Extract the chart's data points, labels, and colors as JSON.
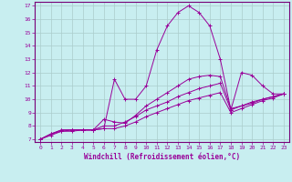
{
  "xlabel": "Windchill (Refroidissement éolien,°C)",
  "bg_color": "#c8eef0",
  "grid_color": "#aacccc",
  "line_color": "#990099",
  "spine_color": "#770077",
  "xlim": [
    -0.5,
    23.5
  ],
  "ylim": [
    6.8,
    17.3
  ],
  "xticks": [
    0,
    1,
    2,
    3,
    4,
    5,
    6,
    7,
    8,
    9,
    10,
    11,
    12,
    13,
    14,
    15,
    16,
    17,
    18,
    19,
    20,
    21,
    22,
    23
  ],
  "yticks": [
    7,
    8,
    9,
    10,
    11,
    12,
    13,
    14,
    15,
    16,
    17
  ],
  "tick_fontsize": 4.5,
  "xlabel_fontsize": 5.5,
  "lines": [
    {
      "x": [
        0,
        1,
        2,
        3,
        4,
        5,
        6,
        7,
        8,
        9,
        10,
        11,
        12,
        13,
        14,
        15,
        16,
        17,
        18,
        19,
        20,
        21,
        22,
        23
      ],
      "y": [
        7.0,
        7.4,
        7.7,
        7.7,
        7.7,
        7.7,
        7.8,
        11.5,
        10.0,
        10.0,
        11.0,
        13.7,
        15.5,
        16.5,
        17.0,
        16.5,
        15.5,
        13.0,
        9.2,
        12.0,
        11.8,
        11.0,
        10.4,
        10.4
      ]
    },
    {
      "x": [
        0,
        1,
        2,
        3,
        4,
        5,
        6,
        7,
        8,
        9,
        10,
        11,
        12,
        13,
        14,
        15,
        16,
        17,
        18,
        19,
        20,
        21,
        22,
        23
      ],
      "y": [
        7.0,
        7.4,
        7.7,
        7.7,
        7.7,
        7.7,
        8.5,
        8.3,
        8.2,
        8.8,
        9.5,
        10.0,
        10.5,
        11.0,
        11.5,
        11.7,
        11.8,
        11.7,
        9.3,
        9.5,
        9.8,
        10.0,
        10.2,
        10.4
      ]
    },
    {
      "x": [
        0,
        1,
        2,
        3,
        4,
        5,
        6,
        7,
        8,
        9,
        10,
        11,
        12,
        13,
        14,
        15,
        16,
        17,
        18,
        19,
        20,
        21,
        22,
        23
      ],
      "y": [
        7.0,
        7.4,
        7.6,
        7.7,
        7.7,
        7.7,
        8.0,
        8.0,
        8.3,
        8.7,
        9.2,
        9.5,
        9.8,
        10.2,
        10.5,
        10.8,
        11.0,
        11.2,
        9.2,
        9.5,
        9.7,
        10.0,
        10.2,
        10.4
      ]
    },
    {
      "x": [
        0,
        1,
        2,
        3,
        4,
        5,
        6,
        7,
        8,
        9,
        10,
        11,
        12,
        13,
        14,
        15,
        16,
        17,
        18,
        19,
        20,
        21,
        22,
        23
      ],
      "y": [
        7.0,
        7.3,
        7.6,
        7.6,
        7.7,
        7.7,
        7.8,
        7.8,
        8.0,
        8.3,
        8.7,
        9.0,
        9.3,
        9.6,
        9.9,
        10.1,
        10.3,
        10.5,
        9.0,
        9.3,
        9.6,
        9.9,
        10.1,
        10.4
      ]
    }
  ]
}
